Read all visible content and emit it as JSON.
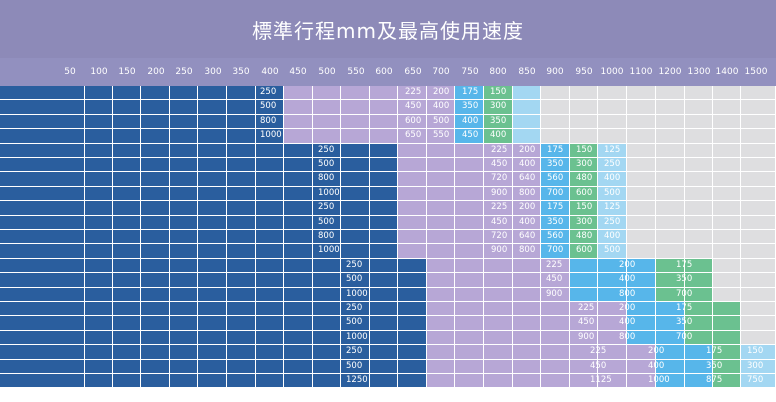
{
  "title": "標準行程mm及最高使用速度",
  "header": [
    "50",
    "100",
    "150",
    "200",
    "250",
    "300",
    "350",
    "400",
    "450",
    "500",
    "550",
    "600",
    "650",
    "700",
    "750",
    "800",
    "850",
    "900",
    "950",
    "1000",
    "1100",
    "1200",
    "1300",
    "1400",
    "1500"
  ],
  "labels": {
    "a": [
      "250",
      "500",
      "800",
      "1000"
    ],
    "b": [
      "225",
      "450",
      "600",
      "650"
    ],
    "c": [
      "200",
      "400",
      "500",
      "550"
    ],
    "d": [
      "175",
      "350",
      "400",
      "450"
    ],
    "e": [
      "150",
      "300",
      "350",
      "400"
    ],
    "f": [
      "250",
      "500",
      "800",
      "1000",
      "250",
      "500",
      "800",
      "1000"
    ],
    "g": [
      "225",
      "450",
      "720",
      "900",
      "225",
      "450",
      "720",
      "900"
    ],
    "h": [
      "200",
      "400",
      "640",
      "800",
      "200",
      "400",
      "640",
      "800"
    ],
    "i": [
      "175",
      "350",
      "560",
      "700",
      "175",
      "350",
      "560",
      "700"
    ],
    "j": [
      "150",
      "300",
      "480",
      "600",
      "150",
      "300",
      "480",
      "600"
    ],
    "k": [
      "125",
      "250",
      "400",
      "500",
      "125",
      "250",
      "400",
      "500"
    ],
    "l": [
      "250",
      "500",
      "1000",
      "250",
      "500",
      "1000"
    ],
    "m": [
      "225",
      "450",
      "900"
    ],
    "n": [
      "225",
      "450",
      "900"
    ],
    "o": [
      "200",
      "400",
      "800",
      "200",
      "400",
      "800"
    ],
    "p": [
      "175",
      "350",
      "700",
      "175",
      "350",
      "700"
    ],
    "q": [
      "250",
      "500",
      "1250"
    ],
    "r": [
      "225",
      "450",
      "1125"
    ],
    "s": [
      "200",
      "400",
      "1000"
    ],
    "t": [
      "175",
      "350",
      "875"
    ],
    "u": [
      "150",
      "300",
      "750"
    ]
  }
}
